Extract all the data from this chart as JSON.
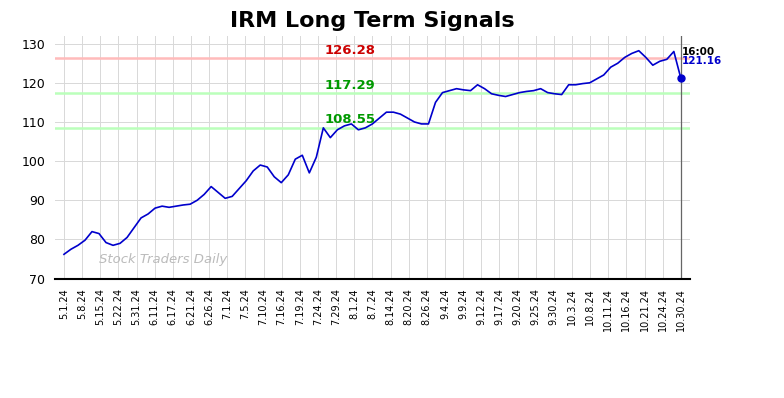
{
  "title": "IRM Long Term Signals",
  "title_fontsize": 16,
  "ylim": [
    70,
    132
  ],
  "yticks": [
    70,
    80,
    90,
    100,
    110,
    120,
    130
  ],
  "red_line": 126.28,
  "green_line1": 117.29,
  "green_line2": 108.55,
  "red_line_color": "#ffbbbb",
  "green_line1_color": "#bbffbb",
  "green_line2_color": "#bbffbb",
  "red_label_color": "#cc0000",
  "green_label_color": "#009900",
  "red_label": "126.28",
  "green_label1": "117.29",
  "green_label2": "108.55",
  "last_time_label": "16:00",
  "last_price_label": "121.16",
  "line_color": "#0000cc",
  "dot_color": "#0000cc",
  "vline_color": "#666666",
  "watermark": "Stock Traders Daily",
  "watermark_color": "#bbbbbb",
  "xtick_labels": [
    "5.1.24",
    "5.8.24",
    "5.15.24",
    "5.22.24",
    "5.31.24",
    "6.11.24",
    "6.17.24",
    "6.21.24",
    "6.26.24",
    "7.1.24",
    "7.5.24",
    "7.10.24",
    "7.16.24",
    "7.19.24",
    "7.24.24",
    "7.29.24",
    "8.1.24",
    "8.7.24",
    "8.14.24",
    "8.20.24",
    "8.26.24",
    "9.4.24",
    "9.9.24",
    "9.12.24",
    "9.17.24",
    "9.20.24",
    "9.25.24",
    "9.30.24",
    "10.3.24",
    "10.8.24",
    "10.11.24",
    "10.16.24",
    "10.21.24",
    "10.24.24",
    "10.30.24"
  ],
  "prices": [
    76.2,
    77.5,
    78.5,
    79.8,
    82.0,
    81.5,
    79.2,
    78.5,
    79.0,
    80.5,
    83.0,
    85.5,
    86.5,
    88.0,
    88.5,
    88.2,
    88.5,
    88.8,
    89.0,
    90.0,
    91.5,
    93.5,
    92.0,
    90.5,
    91.0,
    93.0,
    95.0,
    97.5,
    99.0,
    98.5,
    96.0,
    94.5,
    96.5,
    100.5,
    101.5,
    97.0,
    101.0,
    108.5,
    106.0,
    108.0,
    109.0,
    109.5,
    108.0,
    108.5,
    109.5,
    111.0,
    112.5,
    112.5,
    112.0,
    111.0,
    110.0,
    109.5,
    109.5,
    115.0,
    117.5,
    118.0,
    118.5,
    118.2,
    118.0,
    119.5,
    118.5,
    117.2,
    116.8,
    116.5,
    117.0,
    117.5,
    117.8,
    118.0,
    118.5,
    117.5,
    117.2,
    117.0,
    119.5,
    119.5,
    119.8,
    120.0,
    121.0,
    122.0,
    124.0,
    125.0,
    126.5,
    127.5,
    128.2,
    126.5,
    124.5,
    125.5,
    126.0,
    128.0,
    121.16
  ]
}
